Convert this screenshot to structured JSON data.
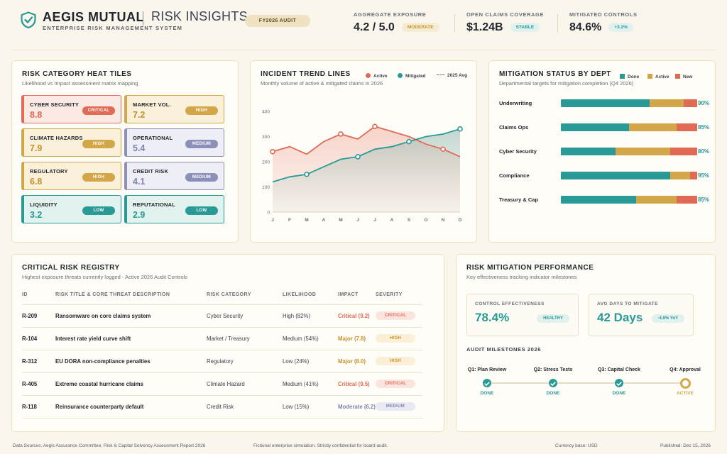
{
  "header": {
    "brand": "AEGIS MUTUAL",
    "product": "RISK INSIGHTS",
    "subtitle": "ENTERPRISE RISK MANAGEMENT SYSTEM",
    "period_badge": "FY2026 AUDIT",
    "kpis": [
      {
        "label": "AGGREGATE EXPOSURE",
        "value": "4.2 / 5.0",
        "pill": "MODERATE",
        "pill_bg": "#f6ecd4",
        "pill_fg": "#c7922d"
      },
      {
        "label": "OPEN CLAIMS COVERAGE",
        "value": "$1.24B",
        "pill": "STABLE",
        "pill_bg": "#e0f1ee",
        "pill_fg": "#2a9a96"
      },
      {
        "label": "MITIGATED CONTROLS",
        "value": "84.6%",
        "pill": "+3.2%",
        "pill_bg": "#e0f1ee",
        "pill_fg": "#2a9a96"
      }
    ]
  },
  "heat_tiles": {
    "title": "RISK CATEGORY HEAT TILES",
    "subtitle": "Likelihood vs Impact assessment matrix mapping",
    "tiles": [
      {
        "name": "CYBER SECURITY",
        "value": "8.8",
        "badge": "CRITICAL",
        "level": "critical"
      },
      {
        "name": "MARKET VOL.",
        "value": "7.2",
        "badge": "HIGH",
        "level": "high"
      },
      {
        "name": "CLIMATE HAZARDS",
        "value": "7.9",
        "badge": "HIGH",
        "level": "high"
      },
      {
        "name": "OPERATIONAL",
        "value": "5.4",
        "badge": "MEDIUM",
        "level": "medium"
      },
      {
        "name": "REGULATORY",
        "value": "6.8",
        "badge": "HIGH",
        "level": "high"
      },
      {
        "name": "CREDIT RISK",
        "value": "4.1",
        "badge": "MEDIUM",
        "level": "medium"
      },
      {
        "name": "LIQUIDITY",
        "value": "3.2",
        "badge": "LOW",
        "level": "low"
      },
      {
        "name": "REPUTATIONAL",
        "value": "2.9",
        "badge": "LOW",
        "level": "low"
      }
    ],
    "level_colors": {
      "critical": {
        "border": "#e06a55",
        "bg": "#fbe9e4",
        "value": "#e06a55",
        "badge": "#e06a55"
      },
      "high": {
        "border": "#d3a64a",
        "bg": "#fbf0da",
        "value": "#c7922d",
        "badge": "#d3a64a"
      },
      "medium": {
        "border": "#8c8fb8",
        "bg": "#eeeef6",
        "value": "#7f82ad",
        "badge": "#8c8fb8"
      },
      "low": {
        "border": "#2a9a96",
        "bg": "#e2f2ef",
        "value": "#2a9a96",
        "badge": "#2a9a96"
      }
    }
  },
  "trend": {
    "title": "INCIDENT TREND LINES",
    "subtitle": "Monthly volume of active & mitigated claims in 2026",
    "legend_active": "Active",
    "legend_mitigated": "Mitigated",
    "legend_avg": "2025 Avg"
  },
  "chart_data": {
    "type": "line",
    "x": [
      "J",
      "F",
      "M",
      "A",
      "M",
      "J",
      "J",
      "A",
      "S",
      "O",
      "N",
      "D"
    ],
    "y_ticks": [
      "0",
      "100",
      "200",
      "300",
      "400"
    ],
    "ylim": [
      0,
      400
    ],
    "series": [
      {
        "name": "Active",
        "color": "#e06a55",
        "values": [
          240,
          260,
          230,
          280,
          310,
          290,
          340,
          320,
          300,
          270,
          250,
          220
        ],
        "markers": [
          0,
          4,
          6,
          10
        ]
      },
      {
        "name": "Mitigated",
        "color": "#2a9a96",
        "values": [
          120,
          140,
          150,
          180,
          210,
          220,
          250,
          260,
          280,
          300,
          310,
          330
        ],
        "markers": [
          2,
          5,
          8,
          11
        ]
      }
    ]
  },
  "mitigation": {
    "title": "MITIGATION STATUS BY DEPT",
    "subtitle": "Departmental targets for mitigation completion (Q4 2026)",
    "legend": [
      {
        "label": "Done",
        "color": "#2a9a96"
      },
      {
        "label": "Active",
        "color": "#d3a64a"
      },
      {
        "label": "New",
        "color": "#e06a55"
      }
    ],
    "rows": [
      {
        "name": "Underwriting",
        "done": 65,
        "active": 25,
        "new": 10,
        "pct": "90%"
      },
      {
        "name": "Claims Ops",
        "done": 50,
        "active": 35,
        "new": 15,
        "pct": "85%"
      },
      {
        "name": "Cyber Security",
        "done": 40,
        "active": 40,
        "new": 20,
        "pct": "80%"
      },
      {
        "name": "Compliance",
        "done": 80,
        "active": 15,
        "new": 5,
        "pct": "95%"
      },
      {
        "name": "Treasury & Cap",
        "done": 55,
        "active": 30,
        "new": 15,
        "pct": "85%"
      }
    ]
  },
  "registry": {
    "title": "CRITICAL RISK REGISTRY",
    "subtitle": "Highest exposure threats currently logged - Active 2026 Audit Controls",
    "columns": [
      "ID",
      "RISK TITLE & CORE THREAT DESCRIPTION",
      "RISK CATEGORY",
      "LIKELIHOOD",
      "IMPACT",
      "SEVERITY"
    ],
    "rows": [
      {
        "id": "R-209",
        "title": "Ransomware on core claims system",
        "category": "Cyber Security",
        "likelihood": "High (82%)",
        "impact": "Critical (9.2)",
        "severity": "CRITICAL",
        "level": "critical"
      },
      {
        "id": "R-104",
        "title": "Interest rate yield curve shift",
        "category": "Market / Treasury",
        "likelihood": "Medium (54%)",
        "impact": "Major (7.8)",
        "severity": "HIGH",
        "level": "high"
      },
      {
        "id": "R-312",
        "title": "EU DORA non-compliance penalties",
        "category": "Regulatory",
        "likelihood": "Low (24%)",
        "impact": "Major (8.0)",
        "severity": "HIGH",
        "level": "high"
      },
      {
        "id": "R-405",
        "title": "Extreme coastal hurricane claims",
        "category": "Climate Hazard",
        "likelihood": "Medium (41%)",
        "impact": "Critical (9.5)",
        "severity": "CRITICAL",
        "level": "critical"
      },
      {
        "id": "R-118",
        "title": "Reinsurance counterparty default",
        "category": "Credit Risk",
        "likelihood": "Low (15%)",
        "impact": "Moderate (6.2)",
        "severity": "MEDIUM",
        "level": "medium"
      }
    ]
  },
  "performance": {
    "title": "RISK MITIGATION PERFORMANCE",
    "subtitle": "Key effectiveness tracking indicator milestones",
    "boxes": [
      {
        "label": "CONTROL EFFECTIVENESS",
        "value": "78.4%",
        "pill": "HEALTHY"
      },
      {
        "label": "AVG DAYS TO MITIGATE",
        "value": "42 Days",
        "pill": "-4.8% YoY"
      }
    ],
    "milestones_title": "AUDIT MILESTONES 2026",
    "milestones": [
      {
        "label": "Q1: Plan Review",
        "status": "DONE",
        "state": "done"
      },
      {
        "label": "Q2: Stress Tests",
        "status": "DONE",
        "state": "done"
      },
      {
        "label": "Q3: Capital Check",
        "status": "DONE",
        "state": "done"
      },
      {
        "label": "Q4: Approval",
        "status": "ACTIVE",
        "state": "active"
      }
    ]
  },
  "footer": {
    "sources": "Data Sources: Aegis Assurance Committee, Risk & Capital Solvency Assessment Report 2026",
    "note": "Fictional enterprise simulation. Strictly confidential for board audit.",
    "currency": "Currency base: USD",
    "published": "Published: Dec 15, 2026"
  }
}
